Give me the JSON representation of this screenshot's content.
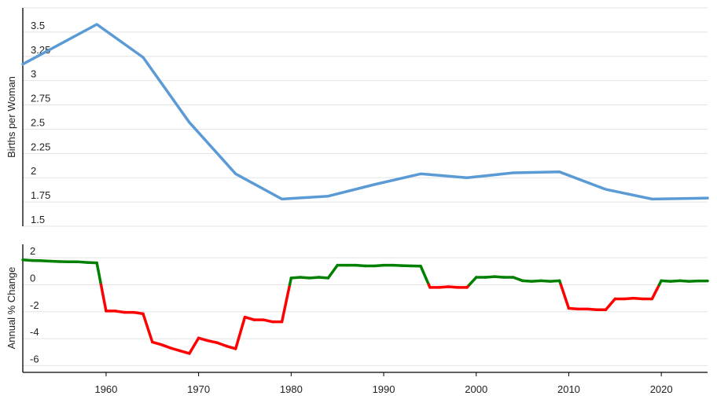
{
  "chart_data": [
    {
      "type": "line",
      "title": "",
      "ylabel": "Births per Woman",
      "xlim": [
        1951,
        2025
      ],
      "ylim": [
        1.5,
        3.75
      ],
      "y_ticks": [
        "1.5",
        "1.75",
        "2",
        "2.25",
        "2.5",
        "2.75",
        "3",
        "3.25",
        "3.5"
      ],
      "grid": true,
      "line_color": "#5b9bd5",
      "x": [
        1951,
        1959,
        1964,
        1969,
        1974,
        1979,
        1984,
        1989,
        1994,
        1999,
        2004,
        2009,
        2014,
        2019,
        2025
      ],
      "y": [
        3.17,
        3.58,
        3.24,
        2.57,
        2.04,
        1.78,
        1.81,
        1.93,
        2.04,
        2.0,
        2.05,
        2.06,
        1.88,
        1.78,
        1.79
      ]
    },
    {
      "type": "line",
      "title": "",
      "ylabel": "Annual % Change",
      "xlim": [
        1951,
        2025
      ],
      "ylim": [
        -6.5,
        3
      ],
      "y_ticks": [
        "-6",
        "-4",
        "-2",
        "0",
        "2"
      ],
      "x_ticks": [
        "1960",
        "1970",
        "1980",
        "1990",
        "2000",
        "2010",
        "2020"
      ],
      "grid": true,
      "positive_color": "#008000",
      "negative_color": "#ff0000",
      "x": [
        1951,
        1952,
        1953,
        1954,
        1955,
        1956,
        1957,
        1958,
        1959,
        1960,
        1961,
        1962,
        1963,
        1964,
        1965,
        1966,
        1967,
        1968,
        1969,
        1970,
        1971,
        1972,
        1973,
        1974,
        1975,
        1976,
        1977,
        1978,
        1979,
        1980,
        1981,
        1982,
        1983,
        1984,
        1985,
        1986,
        1987,
        1988,
        1989,
        1990,
        1991,
        1992,
        1993,
        1994,
        1995,
        1996,
        1997,
        1998,
        1999,
        2000,
        2001,
        2002,
        2003,
        2004,
        2005,
        2006,
        2007,
        2008,
        2009,
        2010,
        2011,
        2012,
        2013,
        2014,
        2015,
        2016,
        2017,
        2018,
        2019,
        2020,
        2021,
        2022,
        2023,
        2024,
        2025
      ],
      "y": [
        1.85,
        1.8,
        1.78,
        1.75,
        1.72,
        1.7,
        1.7,
        1.65,
        1.62,
        -1.95,
        -1.95,
        -2.05,
        -2.05,
        -2.15,
        -4.25,
        -4.45,
        -4.7,
        -4.9,
        -5.1,
        -3.95,
        -4.15,
        -4.3,
        -4.55,
        -4.75,
        -2.4,
        -2.6,
        -2.6,
        -2.75,
        -2.75,
        0.5,
        0.55,
        0.5,
        0.55,
        0.5,
        1.45,
        1.45,
        1.45,
        1.4,
        1.4,
        1.45,
        1.45,
        1.42,
        1.4,
        1.38,
        -0.2,
        -0.2,
        -0.15,
        -0.2,
        -0.2,
        0.55,
        0.55,
        0.6,
        0.55,
        0.55,
        0.3,
        0.25,
        0.3,
        0.25,
        0.3,
        -1.75,
        -1.8,
        -1.8,
        -1.85,
        -1.85,
        -1.05,
        -1.05,
        -1.0,
        -1.05,
        -1.05,
        0.3,
        0.25,
        0.3,
        0.25,
        0.28,
        0.28
      ]
    }
  ]
}
